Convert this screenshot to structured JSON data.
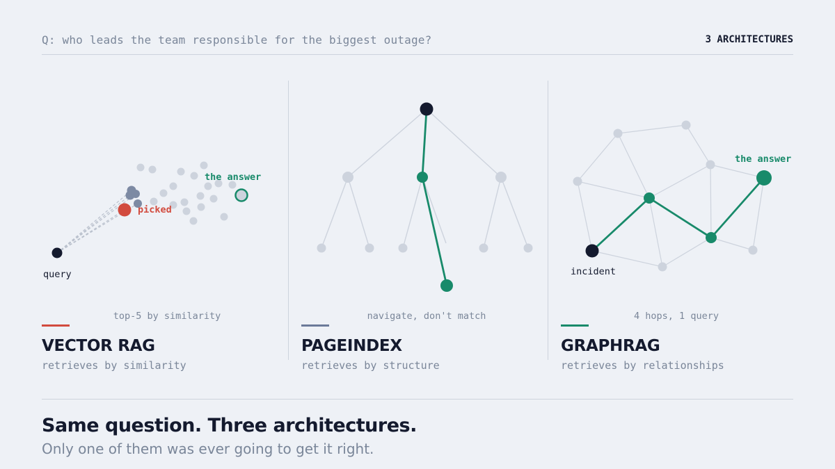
{
  "header": {
    "question": "Q: who leads the team responsible for the biggest outage?",
    "count_label": "3 ARCHITECTURES"
  },
  "colors": {
    "background": "#eef1f6",
    "ink": "#141a2e",
    "muted": "#7a8699",
    "faint_node": "#cdd3dd",
    "vector_red": "#d24b3e",
    "pageindex_slate": "#6b7a99",
    "graph_green": "#188a6a"
  },
  "panels": [
    {
      "id": "vector",
      "caption": "top-5 by similarity",
      "title": "VECTOR RAG",
      "subtitle": "retrieves by similarity",
      "accent_color": "#d24b3e",
      "labels": {
        "query": "query",
        "picked": "picked",
        "answer": "the answer"
      }
    },
    {
      "id": "pageindex",
      "caption": "navigate, don't match",
      "title": "PAGEINDEX",
      "subtitle": "retrieves by structure",
      "accent_color": "#6b7a99"
    },
    {
      "id": "graphrag",
      "caption": "4 hops, 1 query",
      "title": "GRAPHRAG",
      "subtitle": "retrieves by relationships",
      "accent_color": "#188a6a",
      "labels": {
        "start": "incident",
        "answer": "the answer"
      }
    }
  ],
  "footer": {
    "headline": "Same question. Three architectures.",
    "subline": "Only one of them was ever going to get it right."
  }
}
